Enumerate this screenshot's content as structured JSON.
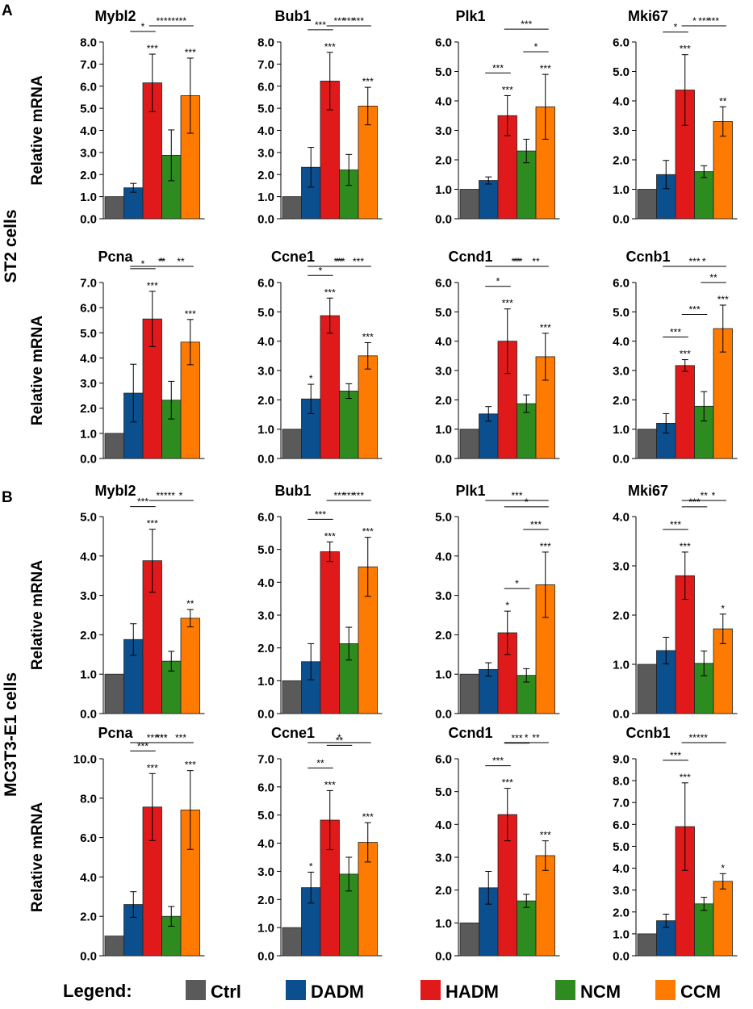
{
  "colors": {
    "Ctrl": "#5a5a5a",
    "DADM": "#0b4f8f",
    "HADM": "#e01a1a",
    "NCM": "#2e8b1f",
    "CCM": "#ff7a00"
  },
  "groups": [
    "Ctrl",
    "DADM",
    "HADM",
    "NCM",
    "CCM"
  ],
  "panel_labels": {
    "a": "A",
    "b": "B"
  },
  "row_labels": {
    "st2": "ST2 cells",
    "mc3t3": "MC3T3-E1 cells"
  },
  "ylabel": "Relative mRNA",
  "legend": {
    "title": "Legend:",
    "items": [
      "Ctrl",
      "DADM",
      "HADM",
      "NCM",
      "CCM"
    ]
  },
  "chart_data": [
    {
      "type": "bar",
      "title": "Mybl2",
      "ylabel": "Relative mRNA",
      "ylim": [
        0,
        8
      ],
      "yticks": [
        "0.0",
        "1.0",
        "2.0",
        "3.0",
        "4.0",
        "5.0",
        "6.0",
        "7.0",
        "8.0"
      ],
      "values": [
        1.0,
        1.4,
        6.15,
        2.87,
        5.57
      ],
      "errors": [
        0,
        0.2,
        1.3,
        1.15,
        1.7
      ],
      "marks": [
        "",
        "",
        "***",
        "",
        "***"
      ],
      "comparisons": [
        {
          "from": 1,
          "to": 2,
          "label": "*"
        },
        {
          "from": 2,
          "to": 3,
          "label": "***"
        },
        {
          "from": 3,
          "to": 4,
          "label": "***"
        },
        {
          "from": 2,
          "to": 4,
          "label": "**"
        }
      ]
    },
    {
      "type": "bar",
      "title": "Bub1",
      "ylabel": "Relative mRNA",
      "ylim": [
        0,
        8
      ],
      "yticks": [
        "0.0",
        "1.0",
        "2.0",
        "3.0",
        "4.0",
        "5.0",
        "6.0",
        "7.0",
        "8.0"
      ],
      "values": [
        1.0,
        2.33,
        6.23,
        2.21,
        5.1
      ],
      "errors": [
        0,
        0.9,
        1.3,
        0.7,
        0.85
      ],
      "marks": [
        "",
        "",
        "***",
        "",
        "***"
      ],
      "comparisons": [
        {
          "from": 1,
          "to": 2,
          "label": "***"
        },
        {
          "from": 2,
          "to": 3,
          "label": "***"
        },
        {
          "from": 3,
          "to": 4,
          "label": "***"
        },
        {
          "from": 2,
          "to": 4,
          "label": "***"
        }
      ]
    },
    {
      "type": "bar",
      "title": "Plk1",
      "ylabel": "Relative mRNA",
      "ylim": [
        0,
        6
      ],
      "yticks": [
        "0.0",
        "1.0",
        "2.0",
        "3.0",
        "4.0",
        "5.0",
        "6.0"
      ],
      "values": [
        1.0,
        1.3,
        3.5,
        2.3,
        3.8
      ],
      "errors": [
        0,
        0.12,
        0.68,
        0.4,
        1.1
      ],
      "marks": [
        "",
        "",
        "***",
        "",
        "***"
      ],
      "comparisons": [
        {
          "from": 1,
          "to": 2,
          "label": "***"
        },
        {
          "from": 3,
          "to": 4,
          "label": "*"
        },
        {
          "from": 2,
          "to": 4,
          "label": "***"
        }
      ]
    },
    {
      "type": "bar",
      "title": "Mki67",
      "ylabel": "Relative mRNA",
      "ylim": [
        0,
        6
      ],
      "yticks": [
        "0.0",
        "1.0",
        "2.0",
        "3.0",
        "4.0",
        "5.0",
        "6.0"
      ],
      "values": [
        1.0,
        1.5,
        4.37,
        1.6,
        3.3
      ],
      "errors": [
        0,
        0.48,
        1.2,
        0.2,
        0.5
      ],
      "marks": [
        "",
        "",
        "***",
        "",
        "**"
      ],
      "comparisons": [
        {
          "from": 1,
          "to": 2,
          "label": "*"
        },
        {
          "from": 2,
          "to": 3,
          "label": "*"
        },
        {
          "from": 3,
          "to": 4,
          "label": "***"
        },
        {
          "from": 2,
          "to": 4,
          "label": "***"
        }
      ]
    },
    {
      "type": "bar",
      "title": "Pcna",
      "ylabel": "Relative mRNA",
      "ylim": [
        0,
        7
      ],
      "yticks": [
        "0.0",
        "1.0",
        "2.0",
        "3.0",
        "4.0",
        "5.0",
        "6.0",
        "7.0"
      ],
      "values": [
        1.0,
        2.6,
        5.55,
        2.32,
        4.63
      ],
      "errors": [
        0,
        1.15,
        1.1,
        0.75,
        0.9
      ],
      "marks": [
        "",
        "",
        "***",
        "",
        "***"
      ],
      "comparisons": [
        {
          "from": 1,
          "to": 2,
          "label": "*"
        },
        {
          "from": 2,
          "to": 3,
          "label": "*"
        },
        {
          "from": 3,
          "to": 4,
          "label": "**"
        },
        {
          "from": 1,
          "to": 4,
          "label": "**"
        }
      ]
    },
    {
      "type": "bar",
      "title": "Ccne1",
      "ylabel": "Relative mRNA",
      "ylim": [
        0,
        6
      ],
      "yticks": [
        "0.0",
        "1.0",
        "2.0",
        "3.0",
        "4.0",
        "5.0",
        "6.0"
      ],
      "values": [
        1.0,
        2.03,
        4.87,
        2.3,
        3.5
      ],
      "errors": [
        0,
        0.5,
        0.6,
        0.25,
        0.45
      ],
      "marks": [
        "",
        "*",
        "***",
        "",
        "***"
      ],
      "comparisons": [
        {
          "from": 1,
          "to": 2,
          "label": "*"
        },
        {
          "from": 2,
          "to": 3,
          "label": "**"
        },
        {
          "from": 3,
          "to": 4,
          "label": "***"
        },
        {
          "from": 1,
          "to": 4,
          "label": "***"
        }
      ]
    },
    {
      "type": "bar",
      "title": "Ccnd1",
      "ylabel": "Relative mRNA",
      "ylim": [
        0,
        6
      ],
      "yticks": [
        "0.0",
        "1.0",
        "2.0",
        "3.0",
        "4.0",
        "5.0",
        "6.0"
      ],
      "values": [
        1.0,
        1.52,
        4.0,
        1.87,
        3.47
      ],
      "errors": [
        0,
        0.25,
        1.1,
        0.3,
        0.8
      ],
      "marks": [
        "",
        "",
        "***",
        "",
        "***"
      ],
      "comparisons": [
        {
          "from": 1,
          "to": 2,
          "label": "*"
        },
        {
          "from": 2,
          "to": 3,
          "label": "**"
        },
        {
          "from": 3,
          "to": 4,
          "label": "**"
        },
        {
          "from": 1,
          "to": 4,
          "label": "***"
        }
      ]
    },
    {
      "type": "bar",
      "title": "Ccnb1",
      "ylabel": "Relative mRNA",
      "ylim": [
        0,
        6
      ],
      "yticks": [
        "0.0",
        "1.0",
        "2.0",
        "3.0",
        "4.0",
        "5.0",
        "6.0"
      ],
      "values": [
        1.0,
        1.2,
        3.17,
        1.78,
        4.43
      ],
      "errors": [
        0,
        0.33,
        0.2,
        0.5,
        0.8
      ],
      "marks": [
        "",
        "",
        "***",
        "",
        "***"
      ],
      "comparisons": [
        {
          "from": 1,
          "to": 2,
          "label": "***"
        },
        {
          "from": 2,
          "to": 3,
          "label": "***"
        },
        {
          "from": 2,
          "to": 4,
          "label": "*"
        },
        {
          "from": 3,
          "to": 4,
          "label": "**"
        },
        {
          "from": 1,
          "to": 4,
          "label": "***"
        }
      ]
    },
    {
      "type": "bar",
      "title": "Mybl2",
      "ylabel": "Relative mRNA",
      "ylim": [
        0,
        5
      ],
      "yticks": [
        "0.0",
        "1.0",
        "2.0",
        "3.0",
        "4.0",
        "5.0"
      ],
      "values": [
        1.0,
        1.88,
        3.88,
        1.33,
        2.42
      ],
      "errors": [
        0,
        0.4,
        0.8,
        0.25,
        0.22
      ],
      "marks": [
        "",
        "",
        "***",
        "",
        "**"
      ],
      "comparisons": [
        {
          "from": 1,
          "to": 2,
          "label": "***"
        },
        {
          "from": 2,
          "to": 3,
          "label": "***"
        },
        {
          "from": 3,
          "to": 4,
          "label": "*"
        },
        {
          "from": 2,
          "to": 4,
          "label": "**"
        }
      ]
    },
    {
      "type": "bar",
      "title": "Bub1",
      "ylabel": "Relative mRNA",
      "ylim": [
        0,
        6
      ],
      "yticks": [
        "0.0",
        "1.0",
        "2.0",
        "3.0",
        "4.0",
        "5.0",
        "6.0"
      ],
      "values": [
        1.0,
        1.58,
        4.93,
        2.13,
        4.47
      ],
      "errors": [
        0,
        0.55,
        0.3,
        0.5,
        0.9
      ],
      "marks": [
        "",
        "",
        "***",
        "",
        "***"
      ],
      "comparisons": [
        {
          "from": 1,
          "to": 2,
          "label": "***"
        },
        {
          "from": 2,
          "to": 3,
          "label": "***"
        },
        {
          "from": 3,
          "to": 4,
          "label": "***"
        },
        {
          "from": 2,
          "to": 4,
          "label": "***"
        }
      ]
    },
    {
      "type": "bar",
      "title": "Plk1",
      "ylabel": "Relative mRNA",
      "ylim": [
        0,
        5
      ],
      "yticks": [
        "0.0",
        "1.0",
        "2.0",
        "3.0",
        "4.0",
        "5.0"
      ],
      "values": [
        1.0,
        1.12,
        2.05,
        0.97,
        3.27
      ],
      "errors": [
        0,
        0.17,
        0.55,
        0.17,
        0.83
      ],
      "marks": [
        "",
        "",
        "*",
        "",
        "***"
      ],
      "comparisons": [
        {
          "from": 2,
          "to": 3,
          "label": "*"
        },
        {
          "from": 2,
          "to": 4,
          "label": "*"
        },
        {
          "from": 3,
          "to": 4,
          "label": "***"
        },
        {
          "from": 1,
          "to": 4,
          "label": "***"
        }
      ]
    },
    {
      "type": "bar",
      "title": "Mki67",
      "ylabel": "Relative mRNA",
      "ylim": [
        0,
        4
      ],
      "yticks": [
        "0.0",
        "1.0",
        "2.0",
        "3.0",
        "4.0"
      ],
      "values": [
        1.0,
        1.28,
        2.8,
        1.02,
        1.72
      ],
      "errors": [
        0,
        0.27,
        0.48,
        0.25,
        0.3
      ],
      "marks": [
        "",
        "",
        "***",
        "",
        "*"
      ],
      "comparisons": [
        {
          "from": 1,
          "to": 2,
          "label": "***"
        },
        {
          "from": 2,
          "to": 3,
          "label": "***"
        },
        {
          "from": 3,
          "to": 4,
          "label": "*"
        },
        {
          "from": 2,
          "to": 4,
          "label": "**"
        }
      ]
    },
    {
      "type": "bar",
      "title": "Pcna",
      "ylabel": "Relative mRNA",
      "ylim": [
        0,
        10
      ],
      "yticks": [
        "0.0",
        "2.0",
        "4.0",
        "6.0",
        "8.0",
        "10.0"
      ],
      "values": [
        1.0,
        2.6,
        7.55,
        2.0,
        7.4
      ],
      "errors": [
        0,
        0.65,
        1.7,
        0.5,
        2.0
      ],
      "marks": [
        "",
        "",
        "***",
        "",
        "***"
      ],
      "comparisons": [
        {
          "from": 1,
          "to": 2,
          "label": "***"
        },
        {
          "from": 2,
          "to": 3,
          "label": "***"
        },
        {
          "from": 3,
          "to": 4,
          "label": "***"
        },
        {
          "from": 1,
          "to": 3,
          "label": "***"
        },
        {
          "from": 1,
          "to": 4,
          "label": "***"
        }
      ]
    },
    {
      "type": "bar",
      "title": "Ccne1",
      "ylabel": "Relative mRNA",
      "ylim": [
        0,
        7
      ],
      "yticks": [
        "0.0",
        "1.0",
        "2.0",
        "3.0",
        "4.0",
        "5.0",
        "6.0",
        "7.0"
      ],
      "values": [
        1.0,
        2.42,
        4.82,
        2.9,
        4.03
      ],
      "errors": [
        0,
        0.55,
        1.05,
        0.6,
        0.7
      ],
      "marks": [
        "",
        "*",
        "***",
        "",
        "***"
      ],
      "comparisons": [
        {
          "from": 1,
          "to": 2,
          "label": "**"
        },
        {
          "from": 2,
          "to": 3,
          "label": "**"
        },
        {
          "from": 1,
          "to": 4,
          "label": "*"
        }
      ]
    },
    {
      "type": "bar",
      "title": "Ccnd1",
      "ylabel": "Relative mRNA",
      "ylim": [
        0,
        6
      ],
      "yticks": [
        "0.0",
        "1.0",
        "2.0",
        "3.0",
        "4.0",
        "5.0",
        "6.0"
      ],
      "values": [
        1.0,
        2.07,
        4.3,
        1.67,
        3.05
      ],
      "errors": [
        0,
        0.5,
        0.8,
        0.2,
        0.45
      ],
      "marks": [
        "",
        "",
        "***",
        "",
        "***"
      ],
      "comparisons": [
        {
          "from": 1,
          "to": 2,
          "label": "***"
        },
        {
          "from": 2,
          "to": 3,
          "label": "***"
        },
        {
          "from": 3,
          "to": 4,
          "label": "**"
        },
        {
          "from": 2,
          "to": 4,
          "label": "*"
        }
      ]
    },
    {
      "type": "bar",
      "title": "Ccnb1",
      "ylabel": "Relative mRNA",
      "ylim": [
        0,
        9
      ],
      "yticks": [
        "0.0",
        "1.0",
        "2.0",
        "3.0",
        "4.0",
        "5.0",
        "6.0",
        "7.0",
        "8.0",
        "9.0"
      ],
      "values": [
        1.0,
        1.6,
        5.9,
        2.37,
        3.4
      ],
      "errors": [
        0,
        0.3,
        2.0,
        0.3,
        0.35
      ],
      "marks": [
        "",
        "",
        "***",
        "",
        "*"
      ],
      "comparisons": [
        {
          "from": 1,
          "to": 2,
          "label": "***"
        },
        {
          "from": 2,
          "to": 3,
          "label": "***"
        },
        {
          "from": 2,
          "to": 4,
          "label": "**"
        }
      ]
    }
  ]
}
